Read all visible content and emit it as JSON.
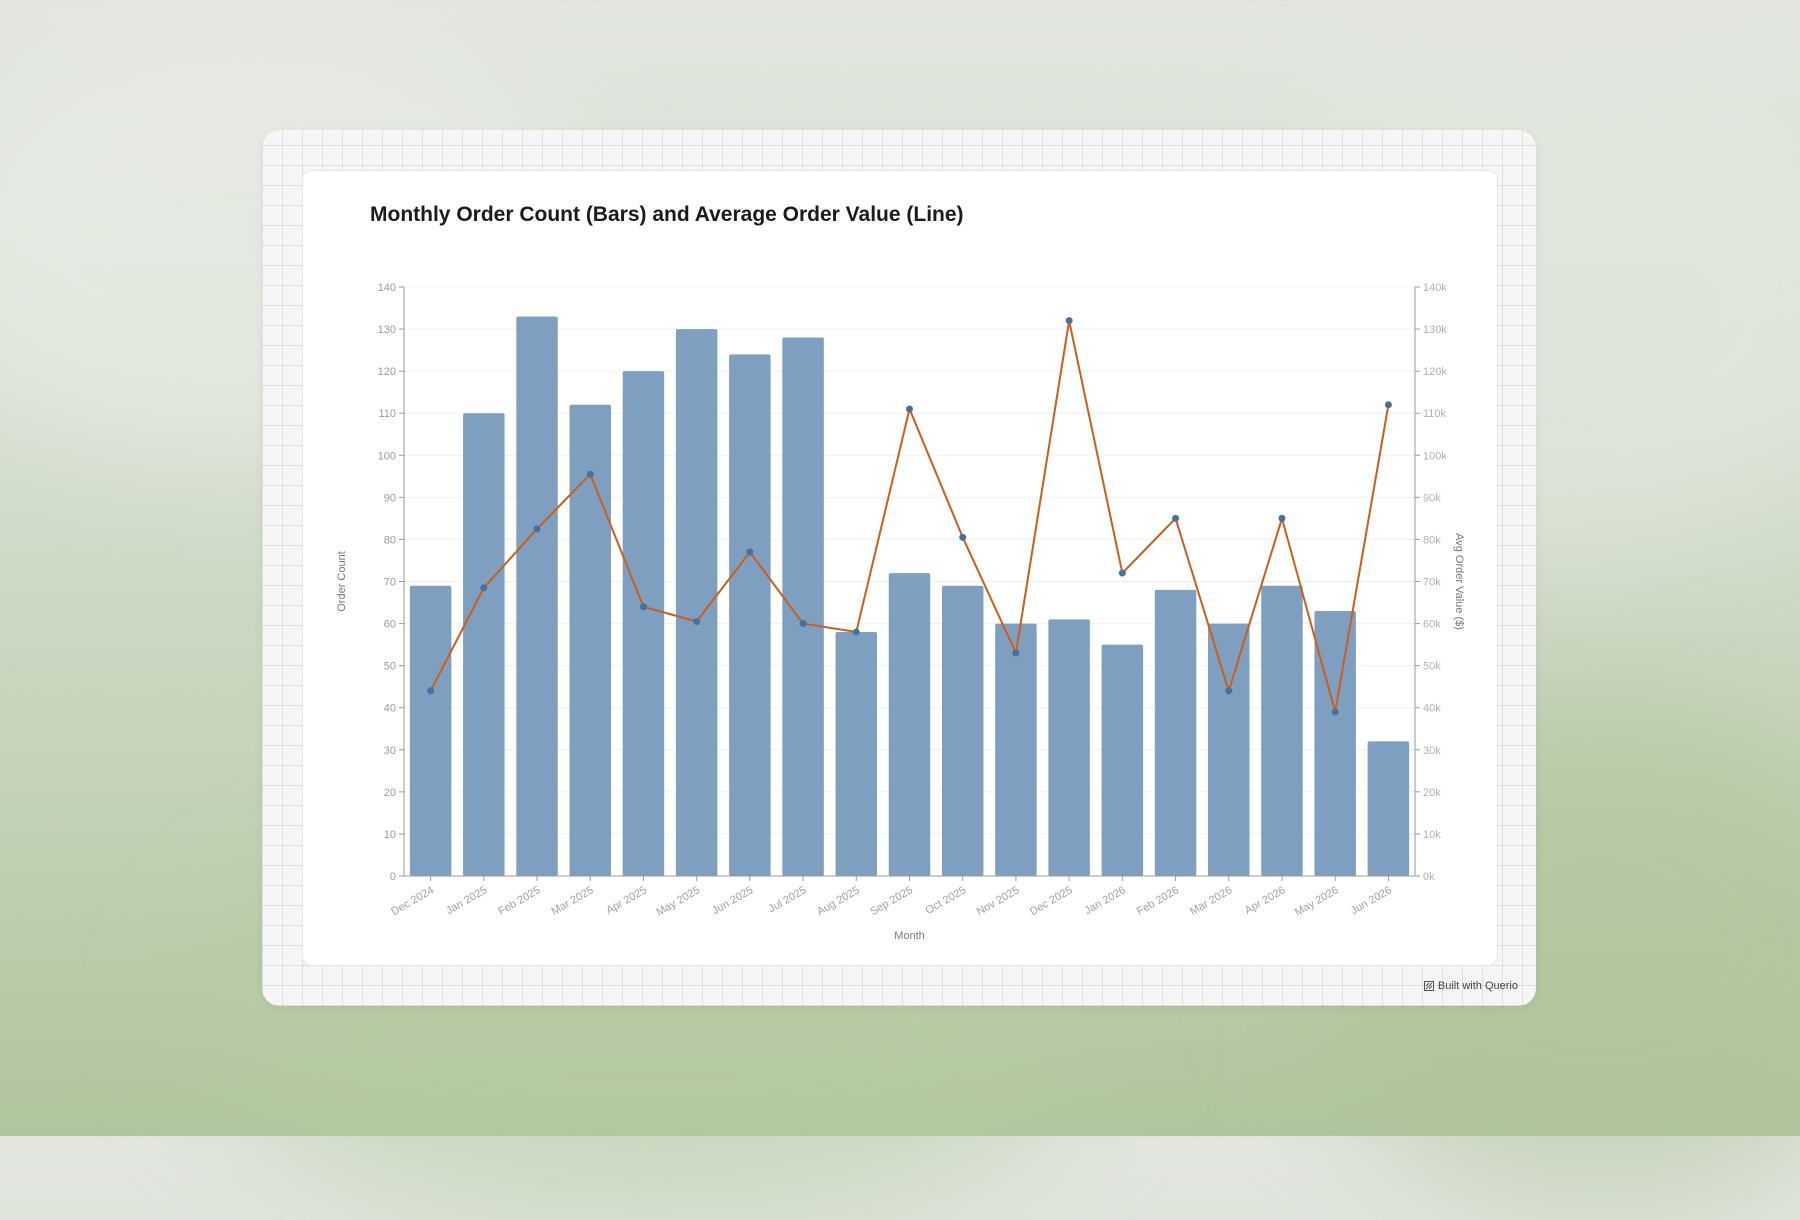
{
  "branding": {
    "badge_label": "Built with Querio",
    "badge_icon": "querio-logo-icon"
  },
  "colors": {
    "bar": "#7f9fc1",
    "line": "#c95f1c",
    "point": "#4a6f99"
  },
  "chart_data": {
    "type": "bar",
    "title": "Monthly Order Count (Bars) and Average Order Value (Line)",
    "xlabel": "Month",
    "ylabel": "Order Count",
    "y2label": "Avg Order Value ($)",
    "ylim": [
      0,
      140
    ],
    "y2lim": [
      0,
      140000
    ],
    "yticks": [
      "0",
      "10",
      "20",
      "30",
      "40",
      "50",
      "60",
      "70",
      "80",
      "90",
      "100",
      "110",
      "120",
      "130",
      "140"
    ],
    "y2ticks": [
      "0k",
      "10k",
      "20k",
      "30k",
      "40k",
      "50k",
      "60k",
      "70k",
      "80k",
      "90k",
      "100k",
      "110k",
      "120k",
      "130k",
      "140k"
    ],
    "grid": true,
    "categories": [
      "Dec 2024",
      "Jan 2025",
      "Feb 2025",
      "Mar 2025",
      "Apr 2025",
      "May 2025",
      "Jun 2025",
      "Jul 2025",
      "Aug 2025",
      "Sep 2025",
      "Oct 2025",
      "Nov 2025",
      "Dec 2025",
      "Jan 2026",
      "Feb 2026",
      "Mar 2026",
      "Apr 2026",
      "May 2026",
      "Jun 2026"
    ],
    "series": [
      {
        "type": "bar",
        "axis": "left",
        "values": [
          69,
          110,
          133,
          112,
          120,
          130,
          124,
          128,
          58,
          72,
          69,
          60,
          61,
          55,
          68,
          60,
          69,
          63,
          32
        ]
      },
      {
        "type": "line",
        "axis": "right",
        "values": [
          44000,
          68500,
          82500,
          95500,
          64000,
          60500,
          77000,
          60000,
          58000,
          111000,
          80500,
          53000,
          132000,
          72000,
          85000,
          44000,
          85000,
          39000,
          112000
        ]
      }
    ]
  }
}
